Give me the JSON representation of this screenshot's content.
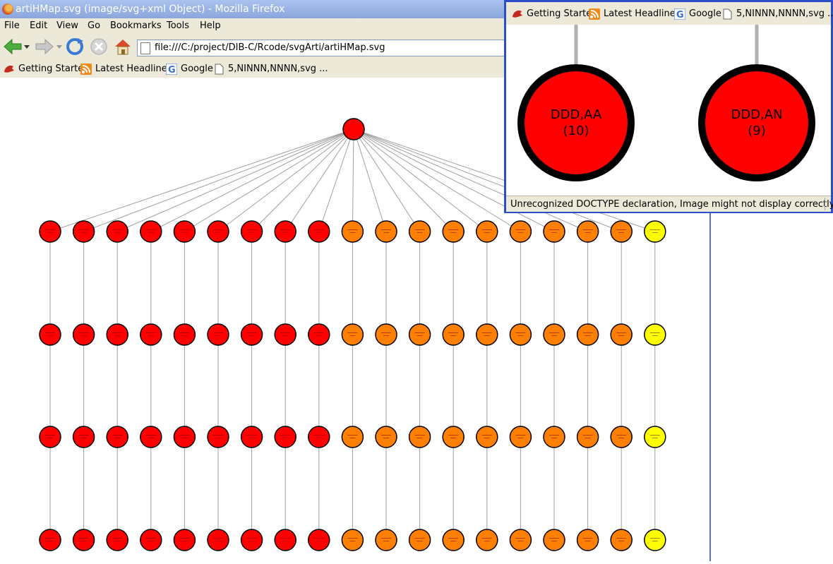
{
  "window": {
    "title": "artiHMap.svg (image/svg+xml Object) - Mozilla Firefox"
  },
  "menu": [
    "File",
    "Edit",
    "View",
    "Go",
    "Bookmarks",
    "Tools",
    "Help"
  ],
  "address": {
    "url": "file:///C:/project/DIB-C/Rcode/svgArti/artiHMap.svg"
  },
  "bookmarks": [
    {
      "label": "Getting Started",
      "icon": "getting-started-icon"
    },
    {
      "label": "Latest Headlines",
      "icon": "rss-icon"
    },
    {
      "label": "Google",
      "icon": "google-icon"
    },
    {
      "label": "5,NINNN,NNNN,svg ...",
      "icon": "page-icon"
    }
  ],
  "popup": {
    "bookmarks": [
      {
        "label": "Getting Started",
        "icon": "getting-started-icon"
      },
      {
        "label": "Latest Headlines",
        "icon": "rss-icon"
      },
      {
        "label": "Google",
        "icon": "google-icon"
      },
      {
        "label": "5,NINNN,NNNN,svg ...",
        "icon": "page-icon"
      }
    ],
    "nodes": [
      {
        "name": "DDD,AA",
        "count": "(10)",
        "color": "#ff0000"
      },
      {
        "name": "DDD,AN",
        "count": "(9)",
        "color": "#ff0000"
      }
    ],
    "status": "Unrecognized DOCTYPE declaration, Image might not display correctly,"
  },
  "graph": {
    "colors": {
      "red": "#ff0000",
      "orange": "#ff8000",
      "yellow": "#ffff00",
      "edge": "#a0a0a0"
    },
    "root_color": "#ff0000",
    "columns": [
      "red",
      "red",
      "red",
      "red",
      "red",
      "red",
      "red",
      "red",
      "red",
      "orange",
      "orange",
      "orange",
      "orange",
      "orange",
      "orange",
      "orange",
      "orange",
      "orange",
      "yellow"
    ],
    "levels": 4
  }
}
